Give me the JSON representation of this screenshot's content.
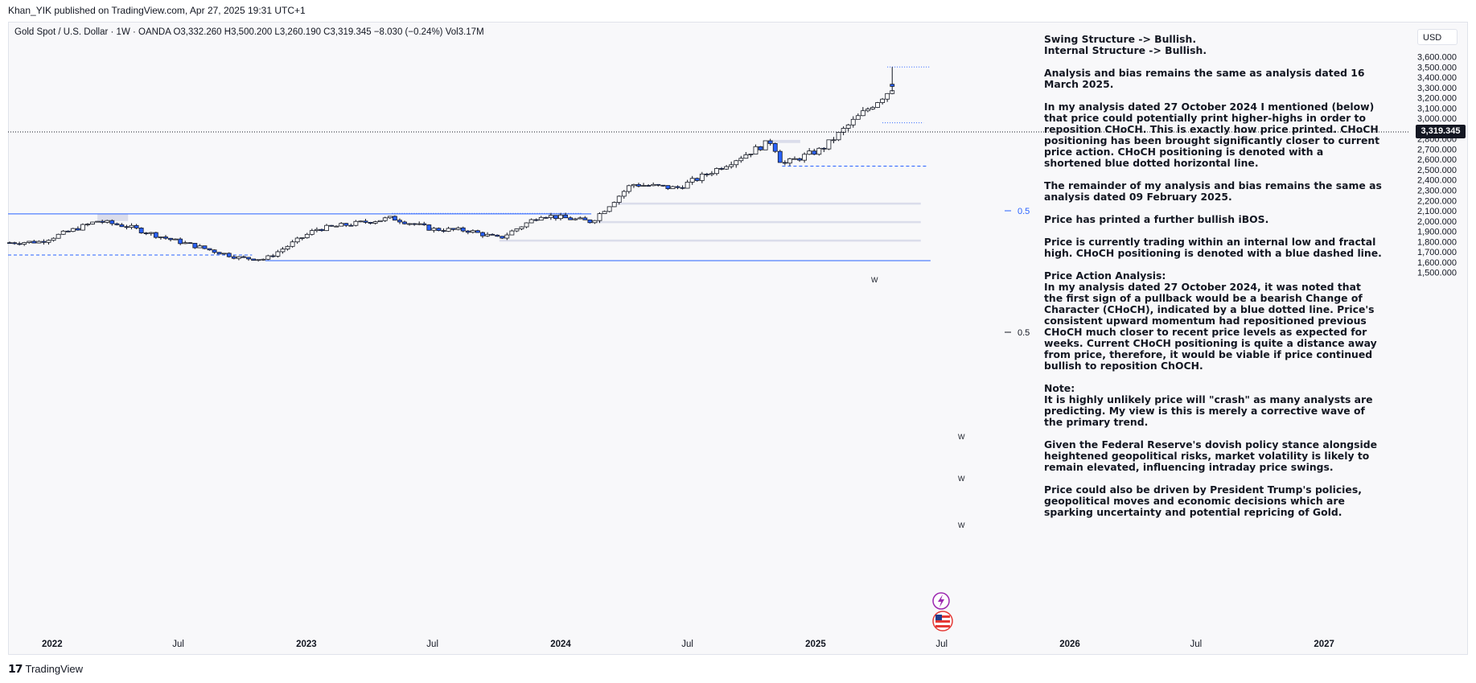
{
  "header": {
    "publish_line": "Khan_YIK published on TradingView.com, Apr 27, 2025 19:31 UTC+1",
    "symbol_line": "Gold Spot / U.S. Dollar · 1W · OANDA  O3,332.260  H3,500.200  L3,260.190  C3,319.345  −8.030 (−0.24%)  Vol3.17M"
  },
  "price_scale": {
    "currency": "USD",
    "current_price": "3,319.345",
    "labels": [
      "3,600.000",
      "3,500.000",
      "3,400.000",
      "3,300.000",
      "3,200.000",
      "3,100.000",
      "3,000.000",
      "2,900.000",
      "2,800.000",
      "2,700.000",
      "2,600.000",
      "2,500.000",
      "2,400.000",
      "2,300.000",
      "2,200.000",
      "2,100.000",
      "2,000.000",
      "1,900.000",
      "1,800.000",
      "1,700.000",
      "1,600.000",
      "1,500.000"
    ]
  },
  "time_scale": {
    "labels": [
      "2022",
      "Jul",
      "2023",
      "Jul",
      "2024",
      "Jul",
      "2025",
      "Jul",
      "2026",
      "Jul",
      "2027"
    ]
  },
  "annotations": {
    "fib_upper": "0.5",
    "fib_lower": "0.5",
    "zone_label": "W"
  },
  "notes": [
    "Swing Structure -> Bullish.\nInternal Structure -> Bullish.",
    "Analysis and bias remains the same as analysis dated 16 March 2025.",
    "In my analysis dated 27 October 2024 I mentioned (below) that price could potentially print higher-highs in order to reposition CHoCH.  This is exactly how price printed.  CHoCH positioning has been brought significantly closer to current price action.  CHoCH positioning is denoted with a shortened blue dotted horizontal line.",
    "The remainder of my analysis and bias remains the same as analysis dated 09 February 2025.",
    "Price has printed a further bullish iBOS.",
    "Price is currently trading within an internal low and fractal high.  CHoCH positioning is denoted with a blue dashed line.",
    "Price Action Analysis:\nIn my analysis dated 27 October 2024, it was noted that the first sign of a pullback would be a bearish Change of Character (CHoCH), indicated by a blue dotted line. Price's consistent upward momentum had repositioned previous CHoCH much closer to recent price levels as expected for weeks. Current CHoCH positioning is quite a distance away from price, therefore, it would be viable if price continued bullish to reposition ChOCH.",
    "Note:\nIt is highly unlikely price will \"crash\" as many analysts are predicting.  My view is this is merely a corrective wave of the primary trend.",
    "Given the Federal Reserve's dovish policy stance alongside heightened geopolitical risks, market volatility is likely to remain elevated, influencing intraday price swings.",
    "Price could also be driven by President Trump's policies, geopolitical moves and economic decisions which are sparking uncertainty and potential repricing of Gold."
  ],
  "footer": {
    "brand": "TradingView"
  },
  "colors": {
    "up": "#ffffff",
    "down": "#2962ff",
    "zone": "#d1d4e6",
    "line": "#2962ff"
  },
  "chart_data": {
    "type": "candlestick",
    "interval": "1W",
    "y_range": [
      1450,
      3650
    ],
    "anchors": [
      [
        "2021-11-01",
        1790
      ],
      [
        "2021-12-15",
        1800
      ],
      [
        "2022-03-07",
        2000
      ],
      [
        "2022-04-18",
        1950
      ],
      [
        "2022-06-15",
        1830
      ],
      [
        "2022-09-28",
        1640
      ],
      [
        "2022-11-03",
        1630
      ],
      [
        "2023-01-15",
        1920
      ],
      [
        "2023-05-04",
        2030
      ],
      [
        "2023-07-01",
        1920
      ],
      [
        "2023-08-20",
        1910
      ],
      [
        "2023-10-05",
        1830
      ],
      [
        "2023-12-04",
        2060
      ],
      [
        "2024-02-14",
        1995
      ],
      [
        "2024-04-12",
        2360
      ],
      [
        "2024-06-15",
        2320
      ],
      [
        "2024-07-15",
        2410
      ],
      [
        "2024-10-30",
        2780
      ],
      [
        "2024-11-14",
        2550
      ],
      [
        "2025-01-10",
        2700
      ],
      [
        "2025-02-20",
        2950
      ],
      [
        "2025-04-10",
        3230
      ],
      [
        "2025-04-25",
        3319
      ]
    ]
  }
}
